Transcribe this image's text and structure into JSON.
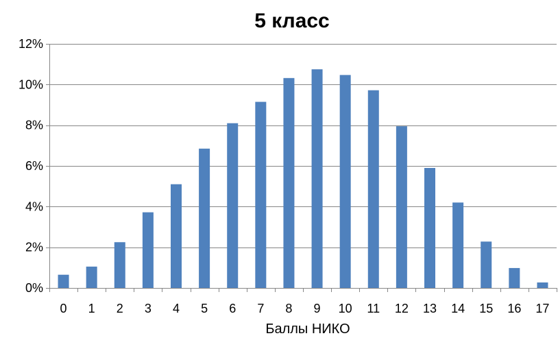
{
  "chart_data": {
    "type": "bar",
    "title": "5 класс",
    "xlabel": "Баллы НИКО",
    "ylabel": "",
    "categories": [
      "0",
      "1",
      "2",
      "3",
      "4",
      "5",
      "6",
      "7",
      "8",
      "9",
      "10",
      "11",
      "12",
      "13",
      "14",
      "15",
      "16",
      "17"
    ],
    "values": [
      0.65,
      1.05,
      2.25,
      3.72,
      5.1,
      6.85,
      8.1,
      9.15,
      10.32,
      10.75,
      10.47,
      9.72,
      7.95,
      5.9,
      4.2,
      2.28,
      0.98,
      0.27
    ],
    "ylim": [
      0,
      12
    ],
    "yticks": [
      0,
      2,
      4,
      6,
      8,
      10,
      12
    ],
    "ytick_labels": [
      "0%",
      "2%",
      "4%",
      "6%",
      "8%",
      "10%",
      "12%"
    ],
    "grid": true,
    "legend": "none",
    "bar_color": "#4F81BD",
    "grid_color": "#868686",
    "axis_color": "#868686"
  }
}
